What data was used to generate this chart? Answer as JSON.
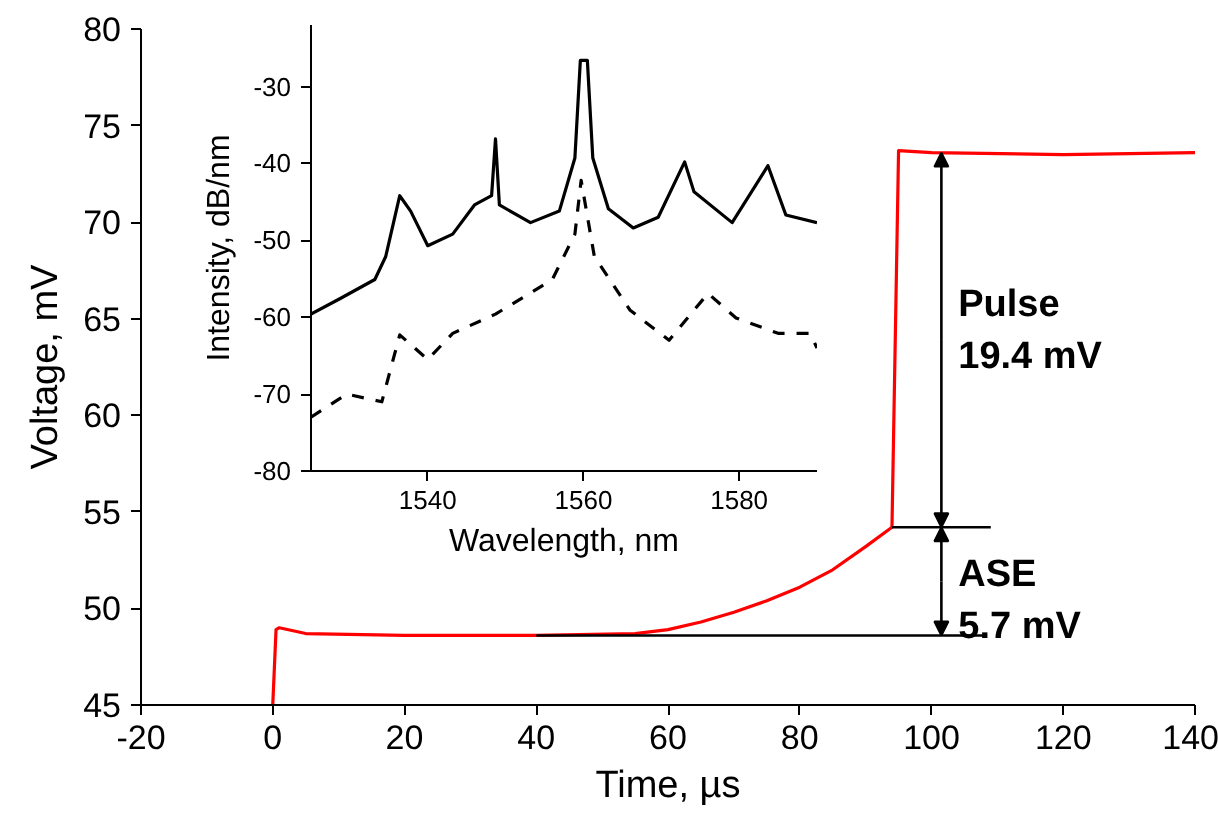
{
  "chart_data": [
    {
      "type": "line",
      "xlabel": "Time, µs",
      "ylabel": "Voltage, mV",
      "xlim": [
        -20,
        140
      ],
      "ylim": [
        45,
        80
      ],
      "xticks": [
        -20,
        0,
        20,
        40,
        60,
        80,
        100,
        120,
        140
      ],
      "yticks": [
        45,
        50,
        55,
        60,
        65,
        70,
        75,
        80
      ],
      "line_style": "solid",
      "x": [
        0,
        0.5,
        1,
        5,
        20,
        40,
        55,
        60,
        65,
        70,
        75,
        80,
        85,
        90,
        94,
        95,
        100,
        120,
        140
      ],
      "series": [
        {
          "color": "#ff0000",
          "values": [
            45,
            48.9,
            49,
            48.7,
            48.6,
            48.6,
            48.7,
            48.9,
            49.3,
            49.8,
            50.4,
            51.1,
            52.0,
            53.2,
            54.2,
            73.7,
            73.6,
            73.5,
            73.6
          ]
        }
      ],
      "annotations": [
        {
          "text": "Pulse\n19.4 mV",
          "x": 101.5,
          "y": 73.6
        },
        {
          "text": "ASE\n5.7 mV",
          "x": 94,
          "y": 54.2
        }
      ]
    },
    {
      "type": "line",
      "xlabel": "Wavelength, nm",
      "ylabel": "Intensity, dB/nm",
      "xlim": [
        1525,
        1590
      ],
      "ylim": [
        -80,
        -22
      ],
      "xticks": [
        1540,
        1560,
        1580
      ],
      "yticks": [
        -80,
        -70,
        -60,
        -50,
        -40,
        -30
      ],
      "series": [
        {
          "color": "#000000",
          "line_style": "solid",
          "x": [
            1525,
            1528.7,
            1533.2,
            1534.6,
            1536.4,
            1537.8,
            1540,
            1543.2,
            1546,
            1548.2,
            1548.7,
            1549.2,
            1553.2,
            1556.9,
            1558.9,
            1559.6,
            1560.5,
            1561.2,
            1563.2,
            1566.4,
            1569.6,
            1573,
            1574.2,
            1579.1,
            1583.7,
            1586,
            1590
          ],
          "values": [
            -59.6,
            -57.6,
            -55.1,
            -52.1,
            -44.2,
            -46.2,
            -50.7,
            -49.2,
            -45.4,
            -44.2,
            -36.8,
            -45.4,
            -47.7,
            -46.2,
            -39.3,
            -26.6,
            -26.6,
            -39.3,
            -45.9,
            -48.4,
            -47,
            -39.8,
            -43.7,
            -47.7,
            -40.3,
            -46.7,
            -47.7
          ]
        },
        {
          "color": "#000000",
          "line_style": "dashed",
          "x": [
            1525,
            1529.6,
            1534.1,
            1536.4,
            1540,
            1543.2,
            1548.7,
            1556,
            1558.9,
            1559.7,
            1561.4,
            1566,
            1571,
            1576,
            1579.6,
            1585,
            1589.1,
            1590
          ],
          "values": [
            -73,
            -70,
            -71,
            -62.3,
            -65.5,
            -62.1,
            -59.6,
            -55.1,
            -49.2,
            -42.2,
            -52.1,
            -59.1,
            -63,
            -56.9,
            -60.1,
            -62.1,
            -62.1,
            -64
          ]
        }
      ]
    }
  ]
}
